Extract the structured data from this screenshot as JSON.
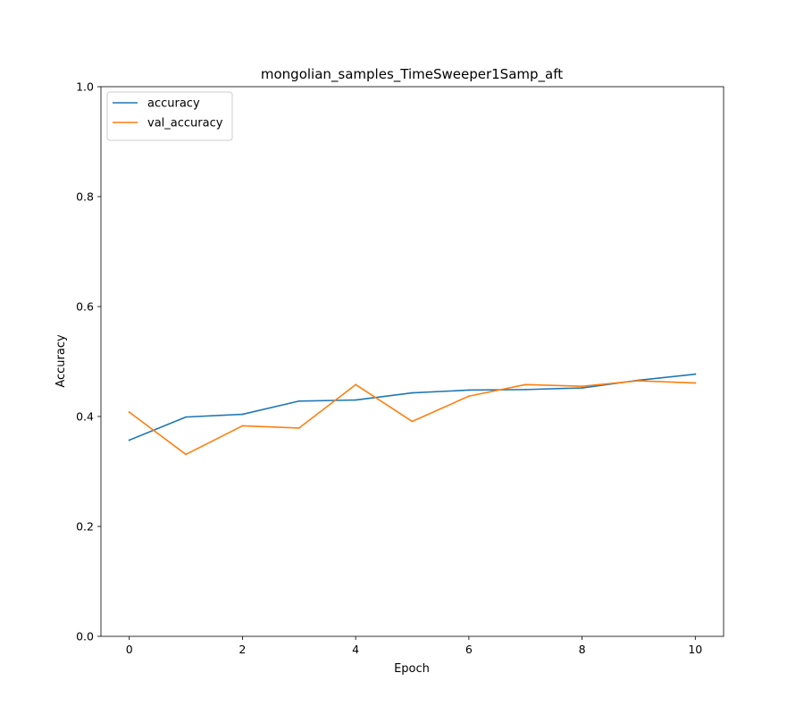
{
  "chart_data": {
    "type": "line",
    "title": "mongolian_samples_TimeSweeper1Samp_aft",
    "xlabel": "Epoch",
    "ylabel": "Accuracy",
    "xlim": [
      -0.5,
      10.5
    ],
    "ylim": [
      0.0,
      1.0
    ],
    "x": [
      0,
      1,
      2,
      3,
      4,
      5,
      6,
      7,
      8,
      9,
      10
    ],
    "xticks": [
      0,
      2,
      4,
      6,
      8,
      10
    ],
    "xtick_labels": [
      "0",
      "2",
      "4",
      "6",
      "8",
      "10"
    ],
    "yticks": [
      0.0,
      0.2,
      0.4,
      0.6,
      0.8,
      1.0
    ],
    "ytick_labels": [
      "0.0",
      "0.2",
      "0.4",
      "0.6",
      "0.8",
      "1.0"
    ],
    "grid": false,
    "legend_position": "top-left",
    "series": [
      {
        "name": "accuracy",
        "color": "#1f77b4",
        "values": [
          0.357,
          0.399,
          0.404,
          0.428,
          0.43,
          0.443,
          0.448,
          0.449,
          0.452,
          0.466,
          0.477
        ]
      },
      {
        "name": "val_accuracy",
        "color": "#ff7f0e",
        "values": [
          0.408,
          0.331,
          0.383,
          0.379,
          0.458,
          0.391,
          0.437,
          0.458,
          0.455,
          0.465,
          0.461
        ]
      }
    ]
  }
}
